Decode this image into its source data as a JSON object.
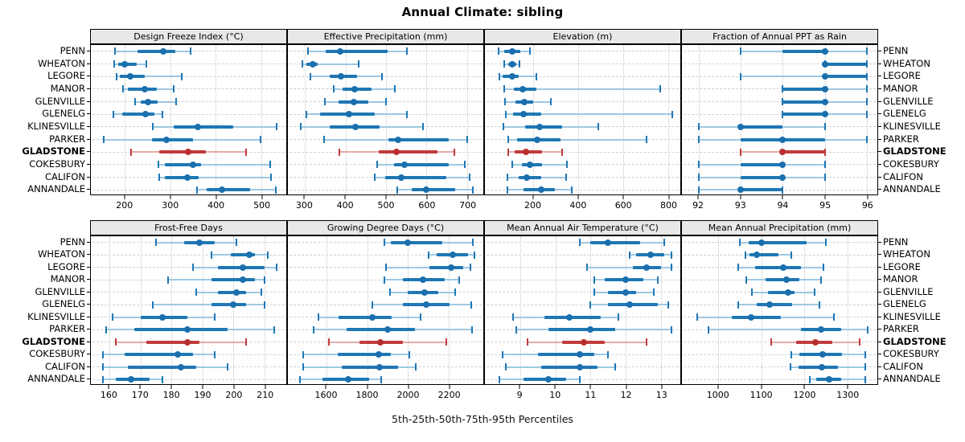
{
  "title": "Annual Climate: sibling",
  "footer": "5th-25th-50th-75th-95th Percentiles",
  "colors": {
    "series": "#1f77b4",
    "series_light": "#9fc8e2",
    "series_dot": "#1a6fae",
    "highlight": "#c13b3b",
    "highlight_light": "#e4aba8",
    "highlight_dot": "#b92f2f",
    "strip_bg": "#e8e8e8",
    "grid": "#c6c6c6"
  },
  "sites": [
    "PENN",
    "WHEATON",
    "LEGORE",
    "MANOR",
    "GLENVILLE",
    "GLENELG",
    "KLINESVILLE",
    "PARKER",
    "GLADSTONE",
    "COKESBURY",
    "CALIFON",
    "ANNANDALE"
  ],
  "highlight_site": "GLADSTONE",
  "chart_data": {
    "type": "dot-interval small multiples (5-25-50-75-95 percentile plot)",
    "percentiles": [
      5,
      25,
      50,
      75,
      95
    ],
    "grid": "on",
    "panels": [
      {
        "slug": "design-freeze-index",
        "title": "Design Freeze Index (°C)",
        "grid_row": 0,
        "grid_col": 0,
        "xlim": [
          125,
          555
        ],
        "ticks": [
          200,
          300,
          400,
          500
        ],
        "values": [
          [
            178,
            227,
            285,
            310,
            345
          ],
          [
            177,
            185,
            200,
            226,
            247
          ],
          [
            181,
            188,
            212,
            244,
            325
          ],
          [
            195,
            206,
            243,
            271,
            308
          ],
          [
            222,
            234,
            250,
            271,
            313
          ],
          [
            175,
            194,
            246,
            265,
            282
          ],
          [
            262,
            307,
            360,
            438,
            534
          ],
          [
            153,
            260,
            291,
            350,
            499
          ],
          [
            213,
            276,
            339,
            378,
            466
          ],
          [
            273,
            288,
            350,
            368,
            519
          ],
          [
            275,
            288,
            337,
            363,
            522
          ],
          [
            358,
            379,
            413,
            476,
            532
          ]
        ]
      },
      {
        "slug": "effective-precipitation",
        "title": "Effective Precipitation (mm)",
        "grid_row": 0,
        "grid_col": 1,
        "xlim": [
          258,
          740
        ],
        "ticks": [
          300,
          400,
          500,
          600,
          700
        ],
        "values": [
          [
            307,
            352,
            387,
            503,
            552
          ],
          [
            293,
            303,
            319,
            331,
            432
          ],
          [
            314,
            362,
            389,
            429,
            491
          ],
          [
            372,
            393,
            423,
            464,
            521
          ],
          [
            349,
            383,
            420,
            457,
            500
          ],
          [
            303,
            337,
            408,
            472,
            552
          ],
          [
            290,
            362,
            425,
            485,
            591
          ],
          [
            347,
            505,
            530,
            655,
            700
          ],
          [
            385,
            482,
            526,
            626,
            668
          ],
          [
            478,
            520,
            545,
            655,
            695
          ],
          [
            473,
            498,
            538,
            648,
            707
          ],
          [
            528,
            563,
            600,
            670,
            715
          ]
        ]
      },
      {
        "slug": "elevation",
        "title": "Elevation (m)",
        "grid_row": 0,
        "grid_col": 2,
        "xlim": [
          -15,
          855
        ],
        "ticks": [
          200,
          400,
          600,
          800
        ],
        "values": [
          [
            45,
            70,
            108,
            143,
            185
          ],
          [
            72,
            88,
            108,
            123,
            140
          ],
          [
            50,
            65,
            108,
            135,
            215
          ],
          [
            72,
            115,
            155,
            215,
            765
          ],
          [
            75,
            120,
            160,
            200,
            277
          ],
          [
            78,
            110,
            158,
            235,
            818
          ],
          [
            66,
            163,
            228,
            327,
            490
          ],
          [
            88,
            129,
            216,
            320,
            705
          ],
          [
            88,
            119,
            167,
            241,
            327
          ],
          [
            105,
            149,
            187,
            238,
            350
          ],
          [
            84,
            135,
            172,
            235,
            348
          ],
          [
            84,
            158,
            235,
            297,
            372
          ]
        ]
      },
      {
        "slug": "fraction-ppt-rain",
        "title": "Fraction of Annual PPT as Rain",
        "grid_row": 0,
        "grid_col": 3,
        "xlim": [
          91.6,
          96.25
        ],
        "ticks": [
          92,
          93,
          94,
          95,
          96
        ],
        "values": [
          [
            93,
            94,
            95,
            95,
            96
          ],
          [
            95,
            95,
            95,
            96,
            96
          ],
          [
            93,
            95,
            95,
            96,
            96
          ],
          [
            94,
            94,
            95,
            95,
            96
          ],
          [
            94,
            94,
            95,
            95,
            96
          ],
          [
            94,
            94,
            95,
            95,
            96
          ],
          [
            92,
            93,
            93,
            94,
            95
          ],
          [
            92,
            93,
            94,
            95,
            96
          ],
          [
            93,
            94,
            94,
            95,
            95
          ],
          [
            92,
            93,
            94,
            94,
            95
          ],
          [
            92,
            93,
            94,
            94,
            95
          ],
          [
            92,
            93,
            93,
            94,
            94
          ]
        ]
      },
      {
        "slug": "frost-free-days",
        "title": "Frost-Free Days",
        "grid_row": 1,
        "grid_col": 0,
        "xlim": [
          154,
          217
        ],
        "ticks": [
          160,
          170,
          180,
          190,
          200,
          210
        ],
        "values": [
          [
            175,
            184,
            189,
            194,
            201
          ],
          [
            193,
            199,
            205,
            207,
            211
          ],
          [
            187,
            195,
            203,
            210,
            214
          ],
          [
            179,
            193,
            203,
            207,
            210
          ],
          [
            188,
            195,
            201,
            204,
            209
          ],
          [
            174,
            193,
            200,
            204,
            210
          ],
          [
            161,
            170,
            177,
            185,
            194
          ],
          [
            159,
            168,
            185,
            198,
            213
          ],
          [
            162,
            172,
            185,
            189,
            204
          ],
          [
            158,
            165,
            182,
            187,
            194
          ],
          [
            158,
            166,
            183,
            188,
            198
          ],
          [
            158,
            162,
            167,
            173,
            177
          ]
        ]
      },
      {
        "slug": "growing-degree-days",
        "title": "Growing Degree Days (°C)",
        "grid_row": 1,
        "grid_col": 1,
        "xlim": [
          1410,
          2370
        ],
        "ticks": [
          1600,
          1800,
          2000,
          2200
        ],
        "values": [
          [
            1885,
            1915,
            2000,
            2170,
            2320
          ],
          [
            2100,
            2140,
            2220,
            2295,
            2325
          ],
          [
            1890,
            2105,
            2210,
            2270,
            2305
          ],
          [
            1885,
            1975,
            2075,
            2180,
            2250
          ],
          [
            1910,
            2000,
            2080,
            2150,
            2230
          ],
          [
            1825,
            1975,
            2090,
            2205,
            2310
          ],
          [
            1560,
            1660,
            1825,
            1920,
            2060
          ],
          [
            1535,
            1700,
            1900,
            2035,
            2315
          ],
          [
            1610,
            1760,
            1865,
            1975,
            2190
          ],
          [
            1485,
            1655,
            1855,
            1915,
            2005
          ],
          [
            1485,
            1675,
            1860,
            1950,
            2040
          ],
          [
            1470,
            1580,
            1705,
            1810,
            1870
          ]
        ]
      },
      {
        "slug": "mean-annual-air-temperature",
        "title": "Mean Annual Air Temperature (°C)",
        "grid_row": 1,
        "grid_col": 2,
        "xlim": [
          8.0,
          13.55
        ],
        "ticks": [
          9,
          10,
          11,
          12,
          13
        ],
        "values": [
          [
            10.7,
            11.0,
            11.5,
            12.4,
            13.1
          ],
          [
            12.1,
            12.3,
            12.7,
            13.1,
            13.3
          ],
          [
            10.9,
            12.2,
            12.6,
            13.0,
            13.3
          ],
          [
            11.1,
            11.4,
            12.0,
            12.5,
            12.9
          ],
          [
            11.1,
            11.5,
            12.0,
            12.3,
            12.8
          ],
          [
            11.0,
            11.5,
            12.1,
            12.9,
            13.2
          ],
          [
            8.8,
            9.7,
            10.4,
            11.3,
            11.8
          ],
          [
            8.9,
            9.8,
            11.0,
            11.7,
            13.3
          ],
          [
            9.2,
            10.2,
            10.8,
            11.4,
            12.6
          ],
          [
            8.5,
            9.5,
            10.7,
            11.1,
            11.5
          ],
          [
            8.6,
            9.6,
            10.7,
            11.2,
            11.7
          ],
          [
            8.4,
            9.1,
            9.8,
            10.3,
            10.7
          ]
        ]
      },
      {
        "slug": "mean-annual-precipitation",
        "title": "Mean Annual Precipitation (mm)",
        "grid_row": 1,
        "grid_col": 3,
        "xlim": [
          915,
          1370
        ],
        "ticks": [
          1000,
          1100,
          1200,
          1300
        ],
        "values": [
          [
            1050,
            1070,
            1100,
            1205,
            1250
          ],
          [
            1062,
            1072,
            1090,
            1140,
            1170
          ],
          [
            1046,
            1086,
            1150,
            1193,
            1245
          ],
          [
            1064,
            1110,
            1159,
            1189,
            1238
          ],
          [
            1077,
            1116,
            1162,
            1177,
            1224
          ],
          [
            1046,
            1089,
            1119,
            1171,
            1235
          ],
          [
            950,
            1031,
            1076,
            1145,
            1268
          ],
          [
            977,
            1192,
            1239,
            1285,
            1347
          ],
          [
            1123,
            1181,
            1225,
            1266,
            1329
          ],
          [
            1169,
            1189,
            1242,
            1288,
            1342
          ],
          [
            1168,
            1186,
            1241,
            1278,
            1342
          ],
          [
            1213,
            1227,
            1257,
            1285,
            1342
          ]
        ]
      }
    ]
  }
}
